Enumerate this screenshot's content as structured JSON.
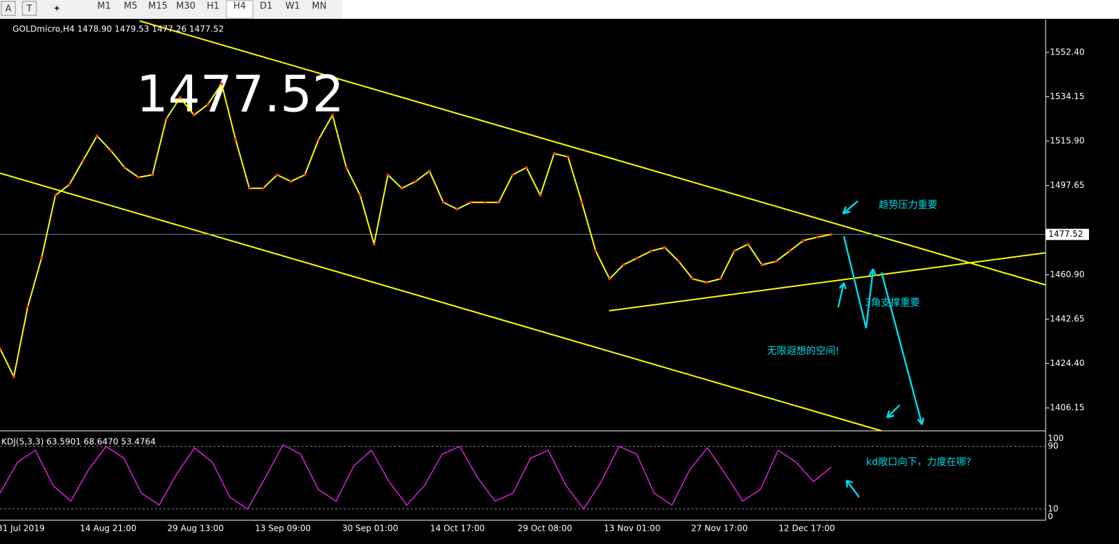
{
  "toolbar": {
    "tools": [
      "A",
      "T"
    ],
    "timeframes": [
      "M1",
      "M5",
      "M15",
      "M30",
      "H1",
      "H4",
      "D1",
      "W1",
      "MN"
    ],
    "active": "H4"
  },
  "chart": {
    "header": "GOLDmicro,H4  1478.90 1479.53 1477.26 1477.52",
    "big_price": "1477.52",
    "current_price": {
      "value": 1477.52,
      "label": "1477.52"
    },
    "ylim": [
      1396.7,
      1565.9
    ],
    "yticks": [
      {
        "value": 1552.4,
        "label": "1552.40"
      },
      {
        "value": 1534.15,
        "label": "1534.15"
      },
      {
        "value": 1515.9,
        "label": "1515.90"
      },
      {
        "value": 1497.65,
        "label": "1497.65"
      },
      {
        "value": 1460.9,
        "label": "1460.90"
      },
      {
        "value": 1442.65,
        "label": "1442.65"
      },
      {
        "value": 1424.4,
        "label": "1424.40"
      },
      {
        "value": 1406.15,
        "label": "1406.15"
      }
    ],
    "close": [
      1430.5,
      1419,
      1447.7,
      1467.8,
      1493.6,
      1498,
      1508,
      1518,
      1512,
      1505,
      1501,
      1502,
      1525,
      1533.8,
      1526.6,
      1531,
      1539.5,
      1516.6,
      1496.5,
      1496.5,
      1502,
      1499.3,
      1502,
      1516.6,
      1526.6,
      1505,
      1493.6,
      1473.5,
      1502,
      1496.5,
      1499.3,
      1503.6,
      1490.7,
      1487.9,
      1490.7,
      1490.7,
      1490.7,
      1502,
      1505,
      1493.6,
      1510.8,
      1509.4,
      1490.7,
      1470.7,
      1459.2,
      1465,
      1467.8,
      1470.7,
      1472.1,
      1466.4,
      1459.2,
      1457.8,
      1459.2,
      1470.7,
      1473.5,
      1465,
      1466.4,
      1470.7,
      1475,
      1476.4,
      1477.5
    ],
    "annotations": [
      "趋势压力重要",
      "3角支撑重要",
      "无限遐想的空间!",
      "kd敞口向下，力度在哪?"
    ],
    "xlabels": [
      "31 Jul 2019",
      "14 Aug 21:00",
      "29 Aug 13:00",
      "13 Sep 09:00",
      "30 Sep 01:00",
      "14 Oct 17:00",
      "29 Oct 08:00",
      "13 Nov 01:00",
      "27 Nov 17:00",
      "12 Dec 17:00"
    ]
  },
  "kdj": {
    "header": "KDJ(5,3,3) 63.5901 68.6470 53.4764",
    "ylim": [
      0,
      100
    ],
    "yticks": [
      100,
      90,
      10,
      0
    ],
    "k": [
      30,
      70,
      85,
      40,
      20,
      60,
      90,
      75,
      30,
      15,
      55,
      88,
      70,
      25,
      10,
      50,
      92,
      80,
      35,
      20,
      65,
      85,
      45,
      15,
      40,
      80,
      90,
      50,
      20,
      30,
      75,
      85,
      40,
      10,
      45,
      90,
      80,
      30,
      15,
      60,
      88,
      55,
      20,
      35,
      85,
      70,
      45,
      63.6
    ]
  }
}
